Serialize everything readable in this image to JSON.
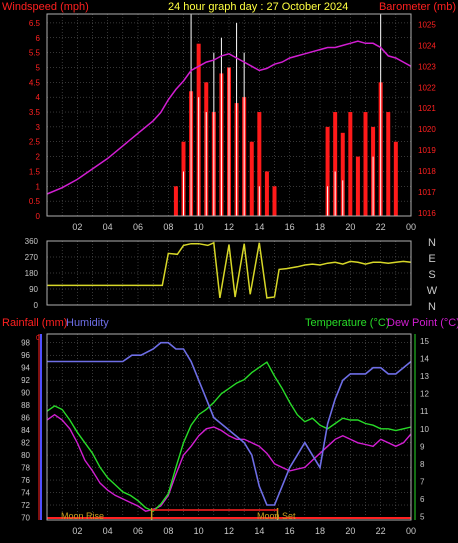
{
  "title": "24 hour graph day : 27 October 2024",
  "colors": {
    "bg": "#000000",
    "grid": "#6e6e6e",
    "frame": "#b0b0b0",
    "wind": "#ff1a1a",
    "gust": "#ffffff",
    "baro": "#d21ed2",
    "dir": "#d7d728",
    "rain": "#ff2020",
    "hum": "#6e6ee6",
    "temp": "#28dc28",
    "dew": "#d21ed2",
    "yaxis_left": "#ff2020",
    "yaxis_right": "#c8c8c8",
    "moon": "#c8a020"
  },
  "x_ticks": [
    "02",
    "04",
    "06",
    "08",
    "10",
    "12",
    "14",
    "16",
    "18",
    "20",
    "22",
    "00"
  ],
  "chart_data": [
    {
      "type": "line",
      "name": "wind-baro",
      "left_label": "Windspeed (mph)",
      "right_label": "Barometer (mb)",
      "left_ticks": [
        "0",
        "0.5",
        "1",
        "1.5",
        "2",
        "2.5",
        "3",
        "3.5",
        "4",
        "4.5",
        "5",
        "5.5",
        "6",
        "6.5"
      ],
      "right_ticks": [
        "1016",
        "1017",
        "1018",
        "1019",
        "1020",
        "1021",
        "1022",
        "1023",
        "1024",
        "1025"
      ],
      "ylim_left": [
        0,
        6.8
      ],
      "ylim_right": [
        1015.85,
        1025.5
      ],
      "grid": true,
      "series": [
        {
          "name": "Barometer (mb)",
          "axis": "right",
          "x": [
            0,
            1,
            2,
            3,
            4,
            5,
            6,
            7,
            7.5,
            8,
            8.5,
            9,
            9.5,
            10,
            10.5,
            11,
            11.5,
            12,
            12.5,
            13,
            13.5,
            14,
            14.5,
            15,
            15.5,
            16,
            16.5,
            17,
            17.5,
            18,
            18.5,
            19,
            19.5,
            20,
            20.5,
            21,
            21.5,
            22,
            22.5,
            23,
            23.5,
            24
          ],
          "values": [
            1016.9,
            1017.2,
            1017.6,
            1018.1,
            1018.6,
            1019.2,
            1019.8,
            1020.4,
            1020.8,
            1021.4,
            1021.9,
            1022.3,
            1022.8,
            1023.0,
            1023.2,
            1023.3,
            1023.5,
            1023.6,
            1023.4,
            1023.2,
            1023.0,
            1022.8,
            1022.9,
            1023.1,
            1023.2,
            1023.4,
            1023.5,
            1023.6,
            1023.7,
            1023.8,
            1023.9,
            1023.9,
            1024.0,
            1024.1,
            1024.2,
            1024.1,
            1024.1,
            1023.9,
            1023.5,
            1023.4,
            1023.2,
            1023.0
          ]
        },
        {
          "name": "Windspeed (mph)",
          "axis": "left",
          "x": [
            8.5,
            9.0,
            9.5,
            10.0,
            10.5,
            11.0,
            11.5,
            12.0,
            12.5,
            13.0,
            13.5,
            14.0,
            14.5,
            15.0,
            18.5,
            19.0,
            19.5,
            20.0,
            20.5,
            21.0,
            21.5,
            22.0,
            22.5,
            23.0
          ],
          "values": [
            1.0,
            2.5,
            4.2,
            5.8,
            4.5,
            3.5,
            4.8,
            5.0,
            3.8,
            4.0,
            2.5,
            3.5,
            1.5,
            1.0,
            3.0,
            3.5,
            2.8,
            3.5,
            2.0,
            3.5,
            3.0,
            4.5,
            3.5,
            2.5
          ]
        },
        {
          "name": "Gust (mph)",
          "axis": "left",
          "x": [
            9.0,
            9.5,
            10.0,
            10.5,
            11.0,
            11.5,
            12.0,
            12.5,
            13.0,
            14.0,
            18.5,
            19.0,
            19.5,
            21.5,
            22.0
          ],
          "values": [
            1.5,
            6.8,
            4.0,
            3.5,
            5.5,
            6.0,
            5.0,
            6.5,
            5.5,
            1.0,
            1.0,
            1.5,
            1.2,
            2.0,
            6.8
          ]
        }
      ]
    },
    {
      "type": "line",
      "name": "wind-direction",
      "left_ticks": [
        "0",
        "90",
        "180",
        "270",
        "360"
      ],
      "right_ticks": [
        "N",
        "W",
        "S",
        "E",
        "N"
      ],
      "ylim": [
        0,
        360
      ],
      "grid": true,
      "series": [
        {
          "name": "Wind direction",
          "x": [
            0,
            7.0,
            7.6,
            8.0,
            8.6,
            9.0,
            9.5,
            10.0,
            10.6,
            11.0,
            11.4,
            12.0,
            12.4,
            13.0,
            13.4,
            14.0,
            14.5,
            15.0,
            15.3,
            15.8,
            16.5,
            17.0,
            17.5,
            18.0,
            18.5,
            19.0,
            19.5,
            20.0,
            20.5,
            21.0,
            21.5,
            22.0,
            22.5,
            23.0,
            23.5,
            24
          ],
          "values": [
            110,
            110,
            110,
            290,
            285,
            335,
            345,
            345,
            335,
            350,
            40,
            340,
            45,
            345,
            60,
            350,
            40,
            45,
            200,
            205,
            215,
            225,
            230,
            225,
            235,
            240,
            230,
            245,
            240,
            230,
            240,
            240,
            235,
            240,
            245,
            240
          ]
        }
      ]
    },
    {
      "type": "line",
      "name": "temp-hum-rain",
      "left_label_1": "Rainfall (mm)",
      "left_label_2": "Humidity",
      "right_label_1": "Temperature (°C)",
      "right_label_2": "Dew Point (°C)",
      "rain_tick": "0",
      "hum_ticks": [
        "70",
        "72",
        "74",
        "76",
        "78",
        "80",
        "82",
        "84",
        "86",
        "88",
        "90",
        "92",
        "94",
        "96",
        "98"
      ],
      "temp_ticks": [
        "5",
        "6",
        "7",
        "8",
        "9",
        "10",
        "11",
        "12",
        "13",
        "14",
        "15"
      ],
      "ylim_hum": [
        69.6,
        99.4
      ],
      "ylim_temp": [
        4.8,
        15.4
      ],
      "grid": true,
      "annotations": [
        "Moon Rise",
        "Moon Set"
      ],
      "series": [
        {
          "name": "Humidity",
          "axis": "humidity",
          "x": [
            0,
            1,
            2,
            3,
            4,
            5,
            5.6,
            6.2,
            7,
            7.5,
            8,
            8.5,
            9,
            9.5,
            10,
            10.5,
            11,
            11.5,
            12,
            12.5,
            13,
            13.5,
            14,
            14.5,
            15,
            15.5,
            16,
            16.5,
            17,
            17.5,
            18,
            18.5,
            19,
            19.5,
            20,
            20.5,
            21,
            21.5,
            22,
            22.5,
            23,
            23.5,
            24
          ],
          "values": [
            95,
            95,
            95,
            95,
            95,
            95,
            96,
            96,
            97,
            98,
            98,
            97,
            97,
            95,
            92,
            89,
            86,
            85,
            84,
            83,
            82,
            80,
            75,
            72,
            72,
            75,
            78,
            80,
            82,
            80,
            78,
            85,
            89,
            92,
            93,
            93,
            93,
            94,
            94,
            93,
            93,
            94,
            95
          ]
        },
        {
          "name": "Temperature (°C)",
          "axis": "temp",
          "x": [
            0,
            0.5,
            1,
            1.5,
            2,
            2.5,
            3,
            3.5,
            4,
            4.5,
            5,
            5.5,
            6,
            6.5,
            7,
            7.5,
            8,
            8.5,
            9,
            9.5,
            10,
            10.5,
            11,
            11.5,
            12,
            12.5,
            13,
            13.5,
            14,
            14.5,
            15,
            15.5,
            16,
            16.5,
            17,
            17.5,
            18,
            18.5,
            19,
            19.5,
            20,
            20.5,
            21,
            21.5,
            22,
            22.5,
            23,
            23.5,
            24
          ],
          "values": [
            11.0,
            11.3,
            11.1,
            10.5,
            9.8,
            9.2,
            8.6,
            7.8,
            7.2,
            6.8,
            6.4,
            6.2,
            5.9,
            5.5,
            5.3,
            5.7,
            6.3,
            7.8,
            9.2,
            10.2,
            10.8,
            11.1,
            11.5,
            12.0,
            12.3,
            12.6,
            12.8,
            13.2,
            13.5,
            13.8,
            13.0,
            12.3,
            11.5,
            10.8,
            10.4,
            10.6,
            10.2,
            10.0,
            10.3,
            10.6,
            10.5,
            10.5,
            10.3,
            10.2,
            10.0,
            10.0,
            9.9,
            10.0,
            10.1
          ]
        },
        {
          "name": "Dew Point (°C)",
          "axis": "temp",
          "x": [
            0,
            0.5,
            1,
            1.5,
            2,
            2.5,
            3,
            3.5,
            4,
            4.5,
            5,
            5.5,
            6,
            6.5,
            7,
            7.5,
            8,
            8.5,
            9,
            9.5,
            10,
            10.5,
            11,
            11.5,
            12,
            12.5,
            13,
            13.5,
            14,
            14.5,
            15,
            15.5,
            16,
            16.5,
            17,
            17.5,
            18,
            18.5,
            19,
            19.5,
            20,
            20.5,
            21,
            21.5,
            22,
            22.5,
            23,
            23.5,
            24
          ],
          "values": [
            10.5,
            10.8,
            10.5,
            10.0,
            9.2,
            8.2,
            7.6,
            6.9,
            6.5,
            6.2,
            6.0,
            5.8,
            5.6,
            5.3,
            5.4,
            5.6,
            6.2,
            7.4,
            8.5,
            9.0,
            9.6,
            10.0,
            10.1,
            9.9,
            9.6,
            9.4,
            9.4,
            9.2,
            9.0,
            8.6,
            8.0,
            7.8,
            7.6,
            7.7,
            7.8,
            8.2,
            8.6,
            9.0,
            9.4,
            9.6,
            9.4,
            9.2,
            9.1,
            9.0,
            9.4,
            9.2,
            9.0,
            9.2,
            9.7
          ]
        },
        {
          "name": "Rainfall (mm)",
          "axis": "rain",
          "x": [
            0,
            24
          ],
          "values": [
            0,
            0
          ]
        }
      ]
    }
  ]
}
